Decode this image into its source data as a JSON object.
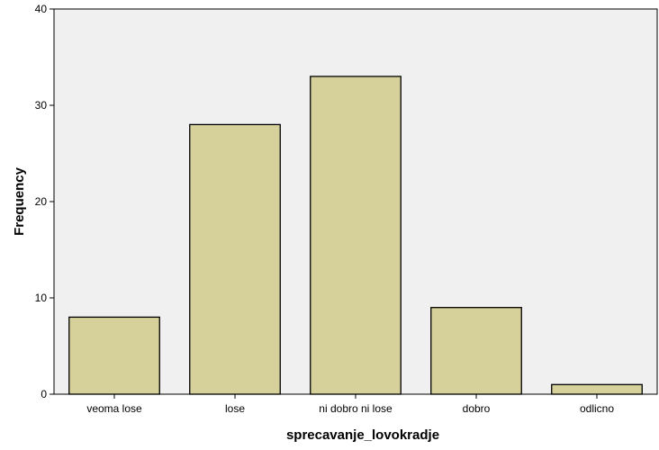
{
  "chart_data": {
    "type": "bar",
    "title": "",
    "xlabel": "sprecavanje_lovokradje",
    "ylabel": "Frequency",
    "categories": [
      "veoma lose",
      "lose",
      "ni dobro ni lose",
      "dobro",
      "odlicno"
    ],
    "values": [
      8,
      28,
      33,
      9,
      1
    ],
    "ylim": [
      0,
      40
    ],
    "yticks": [
      "0",
      "10",
      "20",
      "30",
      "40"
    ],
    "grid": false,
    "legend": "none",
    "colors": {
      "bar_fill": "#d6d09a",
      "bar_stroke": "#000000",
      "plot_background": "#f0f0f0",
      "axis": "#000000"
    }
  }
}
